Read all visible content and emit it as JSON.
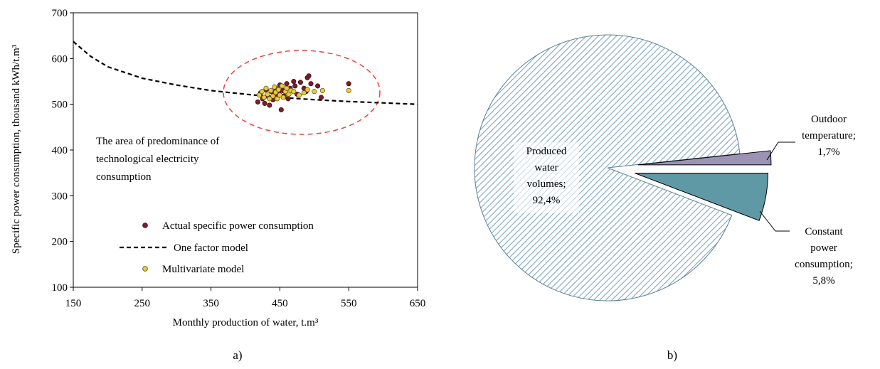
{
  "panels": {
    "a_label": "a)",
    "b_label": "b)"
  },
  "chart_data": [
    {
      "type": "scatter",
      "title": "",
      "xlabel": "Monthly production of water, t.m³",
      "ylabel": "Specific power consumption, thousand kWh/t.m³",
      "xlim": [
        150,
        650
      ],
      "ylim": [
        100,
        700
      ],
      "xticks": [
        "150",
        "250",
        "350",
        "450",
        "550",
        "650"
      ],
      "yticks": [
        "100",
        "200",
        "300",
        "400",
        "500",
        "600",
        "700"
      ],
      "grid": false,
      "legend_position": "bottom-left",
      "annotation": {
        "lines": [
          "The area of predominance of",
          "technological electricity",
          "consumption"
        ]
      },
      "series": [
        {
          "name": "Actual specific power consumption",
          "marker": "circle",
          "color": "#7a1e2a",
          "points": [
            [
              418,
              505
            ],
            [
              422,
              525
            ],
            [
              425,
              512
            ],
            [
              428,
              502
            ],
            [
              430,
              532
            ],
            [
              432,
              518
            ],
            [
              435,
              498
            ],
            [
              438,
              528
            ],
            [
              440,
              510
            ],
            [
              442,
              520
            ],
            [
              444,
              535
            ],
            [
              446,
              515
            ],
            [
              448,
              525
            ],
            [
              450,
              542
            ],
            [
              452,
              488
            ],
            [
              454,
              530
            ],
            [
              456,
              518
            ],
            [
              458,
              528
            ],
            [
              460,
              545
            ],
            [
              462,
              512
            ],
            [
              465,
              535
            ],
            [
              470,
              550
            ],
            [
              472,
              540
            ],
            [
              475,
              522
            ],
            [
              480,
              548
            ],
            [
              485,
              535
            ],
            [
              488,
              528
            ],
            [
              490,
              558
            ],
            [
              492,
              562
            ],
            [
              495,
              545
            ],
            [
              505,
              540
            ],
            [
              510,
              515
            ],
            [
              550,
              545
            ]
          ]
        },
        {
          "name": "One factor model",
          "marker": "dashed-line",
          "color": "#000000",
          "points": [
            [
              150,
              637
            ],
            [
              175,
              605
            ],
            [
              200,
              582
            ],
            [
              250,
              557
            ],
            [
              300,
              542
            ],
            [
              350,
              530
            ],
            [
              400,
              522
            ],
            [
              450,
              515
            ],
            [
              500,
              510
            ],
            [
              550,
              506
            ],
            [
              600,
              503
            ],
            [
              650,
              500
            ]
          ]
        },
        {
          "name": "Multivariate model",
          "marker": "circle",
          "color": "#e8cc3c",
          "points": [
            [
              420,
              520
            ],
            [
              424,
              528
            ],
            [
              427,
              515
            ],
            [
              430,
              535
            ],
            [
              432,
              522
            ],
            [
              435,
              512
            ],
            [
              437,
              530
            ],
            [
              440,
              518
            ],
            [
              442,
              538
            ],
            [
              444,
              526
            ],
            [
              446,
              512
            ],
            [
              448,
              532
            ],
            [
              450,
              520
            ],
            [
              453,
              540
            ],
            [
              455,
              515
            ],
            [
              458,
              528
            ],
            [
              460,
              535
            ],
            [
              463,
              522
            ],
            [
              466,
              530
            ],
            [
              470,
              528
            ],
            [
              478,
              520
            ],
            [
              485,
              525
            ],
            [
              490,
              532
            ],
            [
              500,
              528
            ],
            [
              512,
              530
            ],
            [
              550,
              530
            ]
          ]
        }
      ]
    },
    {
      "type": "pie",
      "title": "",
      "hatched_slice": "Produced water volumes",
      "slices": [
        {
          "label": "Produced water volumes",
          "value_label": "92,4%",
          "value": 92.4,
          "color": "#c9dce6",
          "pattern": "diagonal-hatch",
          "exploded": false
        },
        {
          "label": "Outdoor temperature",
          "value_label": "1,7%",
          "value": 1.7,
          "color": "#9b92b5",
          "pattern": "solid",
          "exploded": true
        },
        {
          "label": "Constant power consumption",
          "value_label": "5,8%",
          "value": 5.8,
          "color": "#5f99a5",
          "pattern": "solid",
          "exploded": true
        }
      ],
      "label_text": {
        "produced": [
          "Produced",
          "water",
          "volumes;",
          "92,4%"
        ],
        "outdoor": [
          "Outdoor",
          "temperature;",
          "1,7%"
        ],
        "constant": [
          "Constant",
          "power",
          "consumption;",
          "5,8%"
        ]
      }
    }
  ]
}
